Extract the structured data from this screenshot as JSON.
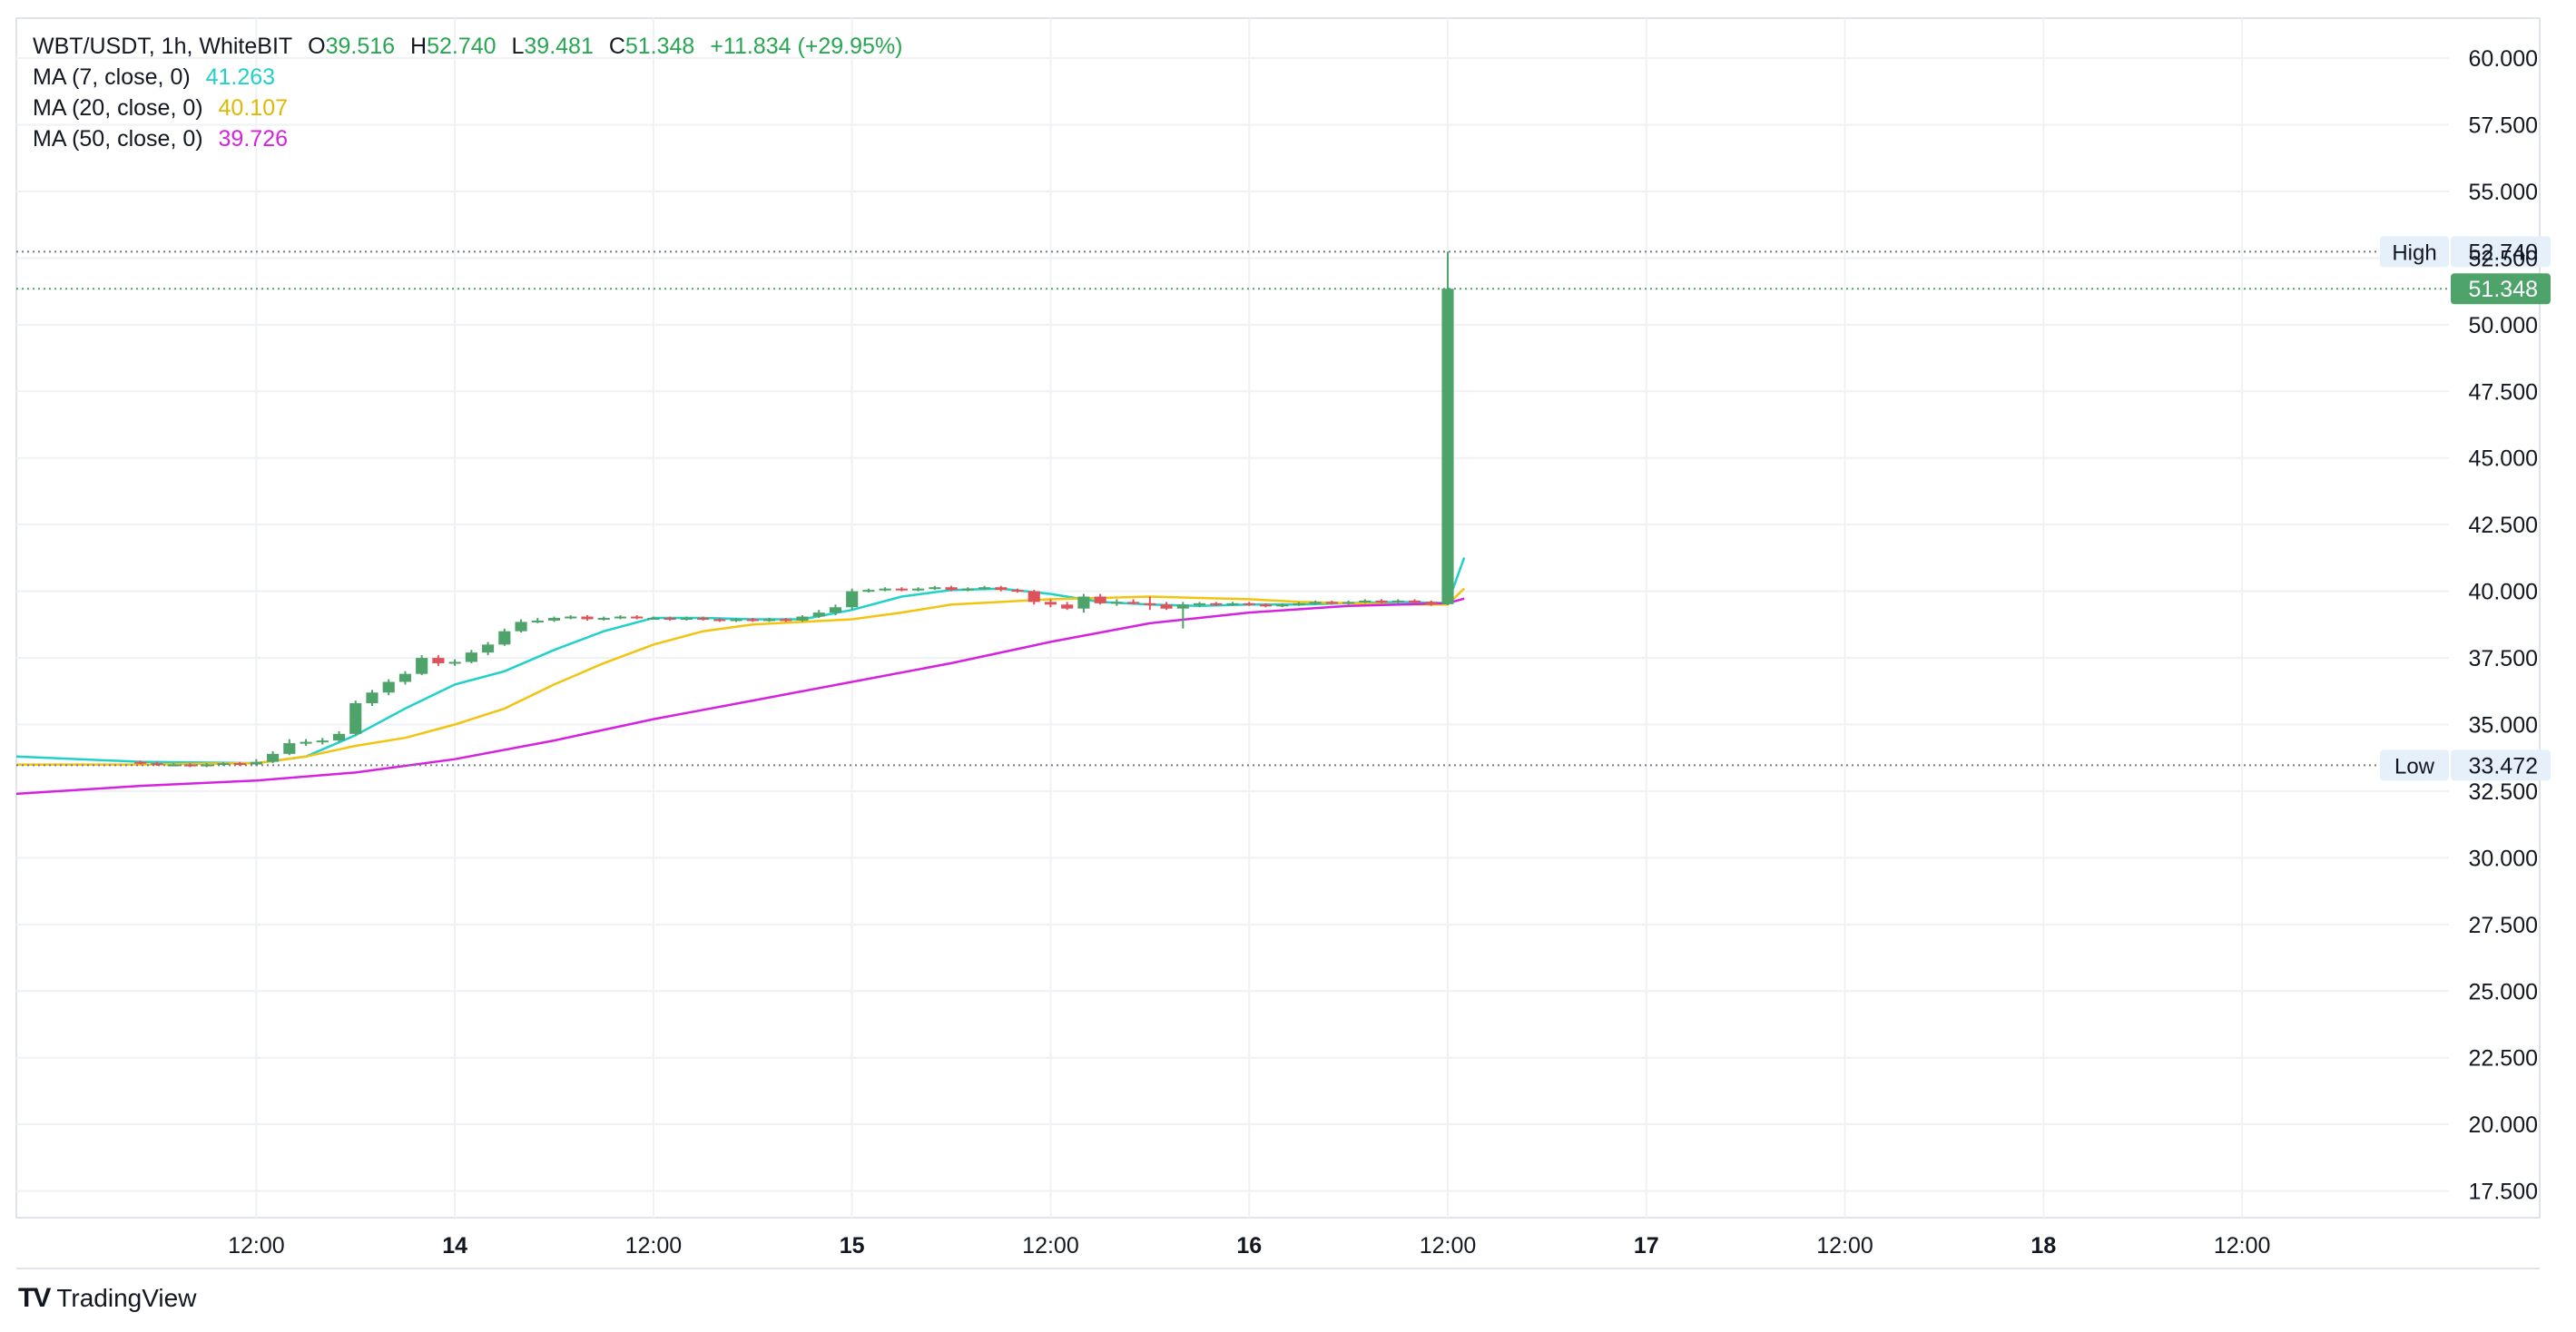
{
  "header": {
    "symbol": "WBT/USDT, 1h, WhiteBIT",
    "open_label": "O",
    "open": "39.516",
    "high_label": "H",
    "high": "52.740",
    "low_label": "L",
    "low": "39.481",
    "close_label": "C",
    "close": "51.348",
    "change": "+11.834 (+29.95%)",
    "indicators": [
      {
        "name": "MA (7, close, 0)",
        "value": "41.263",
        "color": "#1fd1c8"
      },
      {
        "name": "MA (20, close, 0)",
        "value": "40.107",
        "color": "#f2c40f"
      },
      {
        "name": "MA (50, close, 0)",
        "value": "39.726",
        "color": "#d622e0"
      }
    ]
  },
  "branding": {
    "logo": "TV",
    "name": "TradingView",
    "logo_icon": "tradingview-logo-icon"
  },
  "colors": {
    "up": "#4ea36a",
    "down": "#e0525a",
    "grid": "#eff1f4",
    "axis_text": "#131722",
    "marker_bg": "#e6f0fb"
  },
  "chart_data": {
    "type": "candlestick",
    "title": "WBT/USDT, 1h, WhiteBIT",
    "x_ticks": [
      {
        "t": 7,
        "label": "12:00",
        "bold": false
      },
      {
        "t": 19,
        "label": "14",
        "bold": true
      },
      {
        "t": 31,
        "label": "12:00",
        "bold": false
      },
      {
        "t": 43,
        "label": "15",
        "bold": true
      },
      {
        "t": 55,
        "label": "12:00",
        "bold": false
      },
      {
        "t": 67,
        "label": "16",
        "bold": true
      },
      {
        "t": 79,
        "label": "12:00",
        "bold": false
      },
      {
        "t": 91,
        "label": "17",
        "bold": true
      },
      {
        "t": 103,
        "label": "12:00",
        "bold": false
      },
      {
        "t": 115,
        "label": "18",
        "bold": true
      },
      {
        "t": 127,
        "label": "12:00",
        "bold": false
      }
    ],
    "x_range": [
      -7.5,
      139.5
    ],
    "y_ticks": [
      "60.000",
      "57.500",
      "55.000",
      "52.500",
      "50.000",
      "47.500",
      "45.000",
      "42.500",
      "40.000",
      "37.500",
      "35.000",
      "32.500",
      "30.000",
      "27.500",
      "25.000",
      "22.500",
      "20.000",
      "17.500"
    ],
    "ylim": [
      16.5,
      61.5
    ],
    "markers": [
      {
        "label": "High",
        "value": 52.74,
        "text": "52.740"
      },
      {
        "label": "Low",
        "value": 33.472,
        "text": "33.472"
      }
    ],
    "last_price": {
      "value": 51.348,
      "text": "51.348"
    },
    "candles": [
      [
        33.6,
        33.65,
        33.5,
        33.55
      ],
      [
        33.55,
        33.6,
        33.45,
        33.5
      ],
      [
        33.5,
        33.55,
        33.45,
        33.5
      ],
      [
        33.5,
        33.55,
        33.4,
        33.45
      ],
      [
        33.45,
        33.55,
        33.4,
        33.5
      ],
      [
        33.5,
        33.6,
        33.45,
        33.55
      ],
      [
        33.55,
        33.6,
        33.45,
        33.5
      ],
      [
        33.5,
        33.7,
        33.45,
        33.6
      ],
      [
        33.6,
        34.0,
        33.55,
        33.9
      ],
      [
        33.9,
        34.45,
        33.85,
        34.3
      ],
      [
        34.3,
        34.45,
        34.2,
        34.35
      ],
      [
        34.35,
        34.5,
        34.25,
        34.4
      ],
      [
        34.4,
        34.75,
        34.35,
        34.65
      ],
      [
        34.65,
        35.9,
        34.6,
        35.8
      ],
      [
        35.8,
        36.3,
        35.7,
        36.2
      ],
      [
        36.2,
        36.7,
        36.1,
        36.6
      ],
      [
        36.6,
        37.0,
        36.5,
        36.9
      ],
      [
        36.9,
        37.6,
        36.85,
        37.5
      ],
      [
        37.5,
        37.6,
        37.2,
        37.3
      ],
      [
        37.3,
        37.45,
        37.2,
        37.35
      ],
      [
        37.35,
        37.8,
        37.3,
        37.7
      ],
      [
        37.7,
        38.1,
        37.6,
        38.0
      ],
      [
        38.0,
        38.6,
        37.95,
        38.5
      ],
      [
        38.5,
        38.95,
        38.45,
        38.85
      ],
      [
        38.85,
        39.0,
        38.8,
        38.9
      ],
      [
        38.9,
        39.05,
        38.85,
        39.0
      ],
      [
        39.0,
        39.1,
        38.95,
        39.05
      ],
      [
        39.05,
        39.1,
        38.9,
        38.95
      ],
      [
        38.95,
        39.05,
        38.9,
        39.0
      ],
      [
        39.0,
        39.1,
        38.95,
        39.05
      ],
      [
        39.05,
        39.1,
        38.95,
        39.0
      ],
      [
        39.0,
        39.05,
        38.95,
        39.0
      ],
      [
        39.0,
        39.05,
        38.9,
        38.95
      ],
      [
        38.95,
        39.05,
        38.9,
        39.0
      ],
      [
        39.0,
        39.05,
        38.9,
        38.95
      ],
      [
        38.95,
        39.0,
        38.85,
        38.9
      ],
      [
        38.9,
        39.0,
        38.85,
        38.95
      ],
      [
        38.95,
        39.0,
        38.85,
        38.9
      ],
      [
        38.9,
        39.0,
        38.85,
        38.95
      ],
      [
        38.95,
        39.0,
        38.85,
        38.9
      ],
      [
        38.9,
        39.1,
        38.85,
        39.05
      ],
      [
        39.05,
        39.3,
        39.0,
        39.2
      ],
      [
        39.2,
        39.5,
        39.1,
        39.4
      ],
      [
        39.4,
        40.1,
        39.3,
        40.0
      ],
      [
        40.0,
        40.1,
        39.95,
        40.05
      ],
      [
        40.05,
        40.15,
        40.0,
        40.1
      ],
      [
        40.1,
        40.15,
        40.0,
        40.05
      ],
      [
        40.05,
        40.15,
        40.0,
        40.1
      ],
      [
        40.1,
        40.2,
        40.05,
        40.15
      ],
      [
        40.15,
        40.2,
        40.0,
        40.05
      ],
      [
        40.05,
        40.15,
        40.0,
        40.1
      ],
      [
        40.1,
        40.2,
        40.05,
        40.15
      ],
      [
        40.15,
        40.2,
        40.0,
        40.05
      ],
      [
        40.05,
        40.1,
        39.95,
        40.0
      ],
      [
        40.0,
        40.05,
        39.5,
        39.6
      ],
      [
        39.6,
        39.7,
        39.4,
        39.5
      ],
      [
        39.5,
        39.6,
        39.3,
        39.35
      ],
      [
        39.35,
        39.9,
        39.2,
        39.8
      ],
      [
        39.8,
        39.9,
        39.5,
        39.55
      ],
      [
        39.55,
        39.7,
        39.45,
        39.6
      ],
      [
        39.6,
        39.7,
        39.5,
        39.55
      ],
      [
        39.55,
        39.8,
        39.3,
        39.5
      ],
      [
        39.5,
        39.6,
        39.3,
        39.35
      ],
      [
        39.35,
        39.6,
        38.6,
        39.5
      ],
      [
        39.5,
        39.6,
        39.4,
        39.55
      ],
      [
        39.55,
        39.6,
        39.45,
        39.5
      ],
      [
        39.5,
        39.6,
        39.45,
        39.55
      ],
      [
        39.55,
        39.6,
        39.45,
        39.5
      ],
      [
        39.5,
        39.55,
        39.4,
        39.45
      ],
      [
        39.45,
        39.55,
        39.4,
        39.5
      ],
      [
        39.5,
        39.6,
        39.45,
        39.55
      ],
      [
        39.55,
        39.65,
        39.5,
        39.6
      ],
      [
        39.6,
        39.65,
        39.5,
        39.55
      ],
      [
        39.55,
        39.65,
        39.5,
        39.6
      ],
      [
        39.6,
        39.7,
        39.55,
        39.65
      ],
      [
        39.65,
        39.7,
        39.55,
        39.6
      ],
      [
        39.6,
        39.7,
        39.55,
        39.65
      ],
      [
        39.65,
        39.7,
        39.55,
        39.6
      ],
      [
        39.6,
        39.65,
        39.45,
        39.5
      ],
      [
        39.516,
        52.74,
        39.481,
        51.348
      ]
    ],
    "series": [
      {
        "name": "MA (7, close, 0)",
        "color": "#1fd1c8",
        "points": [
          [
            -7.5,
            33.8
          ],
          [
            0,
            33.6
          ],
          [
            7,
            33.55
          ],
          [
            10,
            33.8
          ],
          [
            13,
            34.6
          ],
          [
            16,
            35.6
          ],
          [
            19,
            36.5
          ],
          [
            22,
            37.0
          ],
          [
            25,
            37.8
          ],
          [
            28,
            38.5
          ],
          [
            31,
            39.0
          ],
          [
            34,
            39.0
          ],
          [
            37,
            38.95
          ],
          [
            40,
            38.95
          ],
          [
            43,
            39.3
          ],
          [
            46,
            39.8
          ],
          [
            49,
            40.05
          ],
          [
            52,
            40.1
          ],
          [
            55,
            39.9
          ],
          [
            58,
            39.6
          ],
          [
            61,
            39.5
          ],
          [
            64,
            39.45
          ],
          [
            67,
            39.5
          ],
          [
            70,
            39.5
          ],
          [
            73,
            39.55
          ],
          [
            76,
            39.6
          ],
          [
            79,
            39.55
          ],
          [
            80,
            41.263
          ]
        ]
      },
      {
        "name": "MA (20, close, 0)",
        "color": "#f2c40f",
        "points": [
          [
            -7.5,
            33.5
          ],
          [
            0,
            33.5
          ],
          [
            7,
            33.55
          ],
          [
            10,
            33.8
          ],
          [
            13,
            34.2
          ],
          [
            16,
            34.5
          ],
          [
            19,
            35.0
          ],
          [
            22,
            35.6
          ],
          [
            25,
            36.5
          ],
          [
            28,
            37.3
          ],
          [
            31,
            38.0
          ],
          [
            34,
            38.5
          ],
          [
            37,
            38.75
          ],
          [
            40,
            38.85
          ],
          [
            43,
            38.95
          ],
          [
            46,
            39.2
          ],
          [
            49,
            39.5
          ],
          [
            52,
            39.6
          ],
          [
            55,
            39.7
          ],
          [
            58,
            39.75
          ],
          [
            61,
            39.8
          ],
          [
            64,
            39.75
          ],
          [
            67,
            39.7
          ],
          [
            70,
            39.6
          ],
          [
            73,
            39.55
          ],
          [
            76,
            39.5
          ],
          [
            79,
            39.5
          ],
          [
            80,
            40.107
          ]
        ]
      },
      {
        "name": "MA (50, close, 0)",
        "color": "#d622e0",
        "points": [
          [
            -7.5,
            32.4
          ],
          [
            0,
            32.7
          ],
          [
            7,
            32.9
          ],
          [
            13,
            33.2
          ],
          [
            19,
            33.7
          ],
          [
            25,
            34.4
          ],
          [
            31,
            35.2
          ],
          [
            37,
            35.9
          ],
          [
            43,
            36.6
          ],
          [
            49,
            37.3
          ],
          [
            55,
            38.1
          ],
          [
            61,
            38.8
          ],
          [
            67,
            39.2
          ],
          [
            73,
            39.45
          ],
          [
            79,
            39.55
          ],
          [
            80,
            39.726
          ]
        ]
      }
    ]
  }
}
